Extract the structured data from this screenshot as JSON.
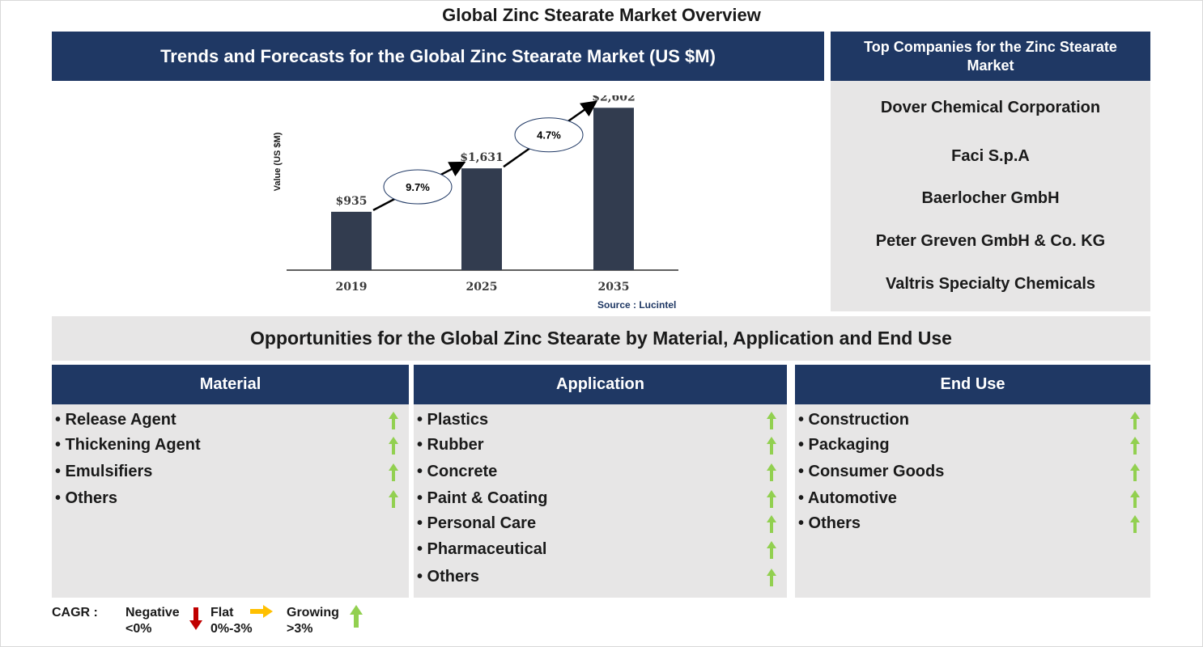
{
  "page_title": "Global Zinc Stearate Market Overview",
  "trend_section": {
    "title": "Trends and Forecasts for the Global Zinc Stearate Market (US $M)"
  },
  "chart_data": {
    "type": "bar",
    "title": "",
    "xlabel": "",
    "ylabel": "Value (US $M)",
    "categories": [
      "2019",
      "2025",
      "2035"
    ],
    "values": [
      935,
      1631,
      2602
    ],
    "value_labels": [
      "$935",
      "$1,631",
      "$2,602"
    ],
    "ylim": [
      0,
      2800
    ],
    "bar_color": "#323c4f",
    "cagr_annotations": [
      {
        "from": "2019",
        "to": "2025",
        "label": "9.7%"
      },
      {
        "from": "2025",
        "to": "2035",
        "label": "4.7%"
      }
    ],
    "source": "Source : Lucintel",
    "grid": false,
    "legend": "none"
  },
  "companies": {
    "title": "Top Companies for the Zinc Stearate Market",
    "items": [
      "Dover Chemical Corporation",
      "Faci S.p.A",
      "Baerlocher GmbH",
      "Peter Greven GmbH & Co. KG",
      "Valtris Specialty Chemicals"
    ]
  },
  "opportunities": {
    "title": "Opportunities for the Global Zinc Stearate by Material, Application and End Use",
    "columns": [
      {
        "title": "Material",
        "items": [
          "Release Agent",
          "Thickening Agent",
          "Emulsifiers",
          "Others"
        ]
      },
      {
        "title": "Application",
        "items": [
          "Plastics",
          "Rubber",
          "Concrete",
          "Paint & Coating",
          "Personal Care",
          "Pharmaceutical",
          "Others"
        ]
      },
      {
        "title": "End Use",
        "items": [
          "Construction",
          "Packaging",
          "Consumer Goods",
          "Automotive",
          "Others"
        ]
      }
    ],
    "trend": "growing"
  },
  "legend": {
    "label": "CAGR :",
    "negative": {
      "name": "Negative",
      "range": "<0%",
      "color": "#c00000"
    },
    "flat": {
      "name": "Flat",
      "range": "0%-3%",
      "color": "#ffc000"
    },
    "growing": {
      "name": "Growing",
      "range": ">3%",
      "color": "#92d050"
    }
  },
  "colors": {
    "header_navy": "#1f3864",
    "panel_gray": "#e7e6e6",
    "arrow_green": "#92d050"
  }
}
